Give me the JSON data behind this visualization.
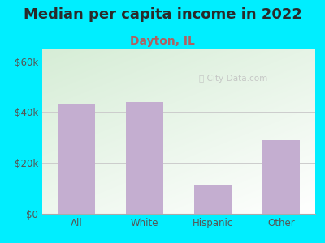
{
  "title": "Median per capita income in 2022",
  "subtitle": "Dayton, IL",
  "categories": [
    "All",
    "White",
    "Hispanic",
    "Other"
  ],
  "values": [
    43000,
    44000,
    11000,
    29000
  ],
  "bar_color": "#c4aed0",
  "title_color": "#2a2a2a",
  "subtitle_color": "#b06060",
  "background_color": "#00eeff",
  "plot_bg_color_top_left": "#d6edd6",
  "plot_bg_color_bottom_right": "#ffffff",
  "yticks": [
    0,
    20000,
    40000,
    60000
  ],
  "ytick_labels": [
    "$0",
    "$20k",
    "$40k",
    "$60k"
  ],
  "ylim": [
    0,
    65000
  ],
  "grid_color": "#cccccc",
  "watermark": "City-Data.com",
  "watermark_color": "#c0c0c0",
  "axis_label_color": "#555555",
  "title_fontsize": 13,
  "subtitle_fontsize": 10,
  "tick_fontsize": 8.5
}
